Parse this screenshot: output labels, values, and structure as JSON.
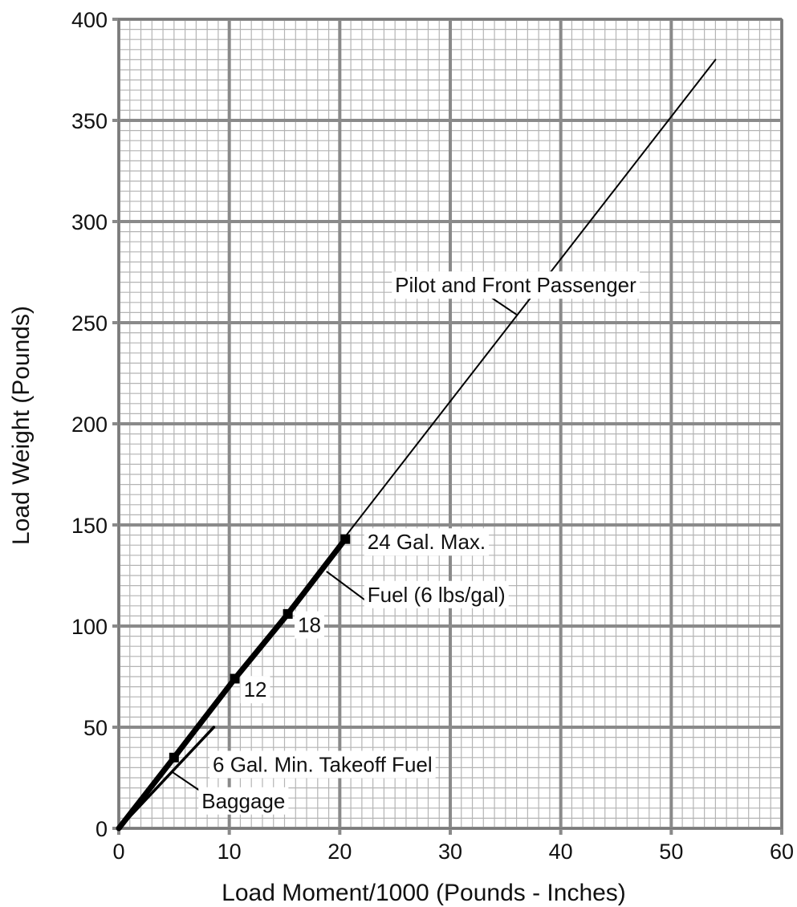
{
  "chart_data": {
    "type": "line",
    "xlabel": "Load Moment/1000 (Pounds - Inches)",
    "ylabel": "Load Weight (Pounds)",
    "xlim": [
      0,
      60
    ],
    "ylim": [
      0,
      400
    ],
    "x_ticks": [
      0,
      10,
      20,
      30,
      40,
      50,
      60
    ],
    "y_ticks": [
      0,
      50,
      100,
      150,
      200,
      250,
      300,
      350,
      400
    ],
    "grid": {
      "major": true,
      "minor": true,
      "minor_x_step": 1,
      "minor_y_step": 5
    },
    "series": [
      {
        "name": "Pilot and Front Passenger",
        "x": [
          0,
          54
        ],
        "y": [
          0,
          380
        ],
        "style": "thin"
      },
      {
        "name": "Fuel (6 lbs/gal)",
        "x": [
          0,
          5,
          10.5,
          15.3,
          20.5
        ],
        "y": [
          0,
          35,
          74,
          106,
          143
        ],
        "style": "thick"
      },
      {
        "name": "Baggage",
        "x": [
          0,
          8.6
        ],
        "y": [
          0,
          50
        ],
        "style": "medium"
      }
    ],
    "fuel_markers": [
      {
        "label": "6 Gal. Min. Takeoff Fuel",
        "x": 5,
        "y": 35
      },
      {
        "label": "12",
        "x": 10.5,
        "y": 74
      },
      {
        "label": "18",
        "x": 15.3,
        "y": 106
      },
      {
        "label": "24 Gal. Max.",
        "x": 20.5,
        "y": 143
      }
    ],
    "annotations": [
      {
        "id": "pilot",
        "text": "Pilot and Front Passenger",
        "tx": 25,
        "ty": 265,
        "lx1": 33,
        "ly1": 265,
        "lx2": 36,
        "ly2": 254
      },
      {
        "id": "fuel",
        "text": "Fuel (6 lbs/gal)",
        "tx": 22.5,
        "ty": 112,
        "lx1": 22.5,
        "ly1": 112,
        "lx2": 18.8,
        "ly2": 127
      },
      {
        "id": "baggage",
        "text": "Baggage",
        "tx": 7.5,
        "ty": 10,
        "lx1": 7.5,
        "ly1": 18,
        "lx2": 4.8,
        "ly2": 28
      },
      {
        "id": "max",
        "text": "24 Gal. Max.",
        "tx": 22.5,
        "ty": 138
      },
      {
        "id": "min",
        "text": "6 Gal. Min. Takeoff Fuel",
        "tx": 8.5,
        "ty": 28
      },
      {
        "id": "g12",
        "text": "12",
        "tx": 11.3,
        "ty": 65
      },
      {
        "id": "g18",
        "text": "18",
        "tx": 16.2,
        "ty": 97
      }
    ],
    "colors": {
      "minor_grid": "#b4b4b4",
      "major_grid": "#8a8a8a",
      "line": "#000000"
    }
  }
}
